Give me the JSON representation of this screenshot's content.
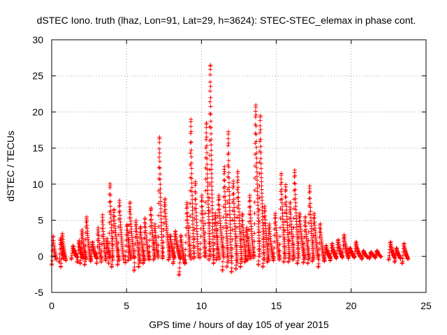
{
  "chart_data": {
    "type": "scatter",
    "title": "dSTEC Iono. truth (lhaz, Lon=91, Lat=29, h=3624): STEC-STEC_elemax in phase cont.",
    "xlabel": "GPS time / hours of day 105 of year 2015",
    "ylabel": "dSTEC  / TECUs",
    "xlim": [
      0,
      25
    ],
    "ylim": [
      -5,
      30
    ],
    "xticks": [
      0,
      5,
      10,
      15,
      20,
      25
    ],
    "yticks": [
      -5,
      0,
      5,
      10,
      15,
      20,
      25,
      30
    ],
    "grid": true,
    "marker": "+",
    "color": "#ff0000",
    "arcs": [
      {
        "t0": 0.0,
        "t1": 0.3,
        "a": 2.8,
        "b": -1.2
      },
      {
        "t0": 0.5,
        "t1": 0.8,
        "a": 2.6,
        "b": -0.8
      },
      {
        "t0": 0.6,
        "t1": 0.95,
        "a": 3.2,
        "b": -1.5
      },
      {
        "t0": 1.3,
        "t1": 1.7,
        "a": 1.5,
        "b": -0.4
      },
      {
        "t0": 1.7,
        "t1": 2.1,
        "a": 2.2,
        "b": -0.8
      },
      {
        "t0": 1.9,
        "t1": 2.3,
        "a": 3.7,
        "b": -1.0
      },
      {
        "t0": 2.2,
        "t1": 2.6,
        "a": 5.5,
        "b": -1.2
      },
      {
        "t0": 2.6,
        "t1": 3.0,
        "a": 2.0,
        "b": -0.7
      },
      {
        "t0": 3.0,
        "t1": 3.3,
        "a": 4.0,
        "b": -1.0
      },
      {
        "t0": 3.3,
        "t1": 3.6,
        "a": 5.8,
        "b": -0.8
      },
      {
        "t0": 3.6,
        "t1": 3.9,
        "a": 2.5,
        "b": -0.6
      },
      {
        "t0": 3.8,
        "t1": 4.1,
        "a": 10.2,
        "b": -1.0
      },
      {
        "t0": 4.0,
        "t1": 4.5,
        "a": 6.5,
        "b": -1.5
      },
      {
        "t0": 4.4,
        "t1": 4.8,
        "a": 7.8,
        "b": -1.2
      },
      {
        "t0": 4.9,
        "t1": 5.3,
        "a": 4.5,
        "b": -0.9
      },
      {
        "t0": 5.1,
        "t1": 5.5,
        "a": 7.5,
        "b": -0.6
      },
      {
        "t0": 5.5,
        "t1": 5.9,
        "a": 5.0,
        "b": -2.0
      },
      {
        "t0": 5.8,
        "t1": 6.2,
        "a": 4.2,
        "b": -1.5
      },
      {
        "t0": 6.1,
        "t1": 6.5,
        "a": 5.3,
        "b": -1.0
      },
      {
        "t0": 6.5,
        "t1": 6.9,
        "a": 6.8,
        "b": -0.5
      },
      {
        "t0": 6.8,
        "t1": 7.1,
        "a": 4.5,
        "b": -0.5
      },
      {
        "t0": 7.1,
        "t1": 7.4,
        "a": 16.5,
        "b": 0.0
      },
      {
        "t0": 7.4,
        "t1": 7.9,
        "a": 8.0,
        "b": -0.3
      },
      {
        "t0": 7.8,
        "t1": 8.2,
        "a": 3.0,
        "b": -0.5
      },
      {
        "t0": 8.1,
        "t1": 8.6,
        "a": 3.5,
        "b": -1.0
      },
      {
        "t0": 8.5,
        "t1": 8.9,
        "a": 3.0,
        "b": -2.6
      },
      {
        "t0": 8.9,
        "t1": 9.3,
        "a": 7.5,
        "b": -1.0
      },
      {
        "t0": 9.2,
        "t1": 9.5,
        "a": 19.0,
        "b": 0.0
      },
      {
        "t0": 9.5,
        "t1": 9.8,
        "a": 10.5,
        "b": -0.3
      },
      {
        "t0": 9.9,
        "t1": 10.3,
        "a": 8.5,
        "b": -0.2
      },
      {
        "t0": 10.2,
        "t1": 10.6,
        "a": 18.5,
        "b": 0.0
      },
      {
        "t0": 10.5,
        "t1": 10.8,
        "a": 26.5,
        "b": -0.5
      },
      {
        "t0": 10.8,
        "t1": 11.2,
        "a": 6.0,
        "b": -1.0
      },
      {
        "t0": 11.0,
        "t1": 11.5,
        "a": 8.5,
        "b": -0.5
      },
      {
        "t0": 11.4,
        "t1": 11.8,
        "a": 12.5,
        "b": -2.0
      },
      {
        "t0": 11.7,
        "t1": 12.0,
        "a": 17.3,
        "b": -1.5
      },
      {
        "t0": 12.0,
        "t1": 12.4,
        "a": 10.5,
        "b": -2.2
      },
      {
        "t0": 12.3,
        "t1": 12.7,
        "a": 11.8,
        "b": -1.8
      },
      {
        "t0": 12.6,
        "t1": 13.0,
        "a": 6.0,
        "b": -1.5
      },
      {
        "t0": 12.9,
        "t1": 13.3,
        "a": 4.0,
        "b": -0.8
      },
      {
        "t0": 13.1,
        "t1": 13.5,
        "a": 8.5,
        "b": -0.5
      },
      {
        "t0": 13.5,
        "t1": 13.9,
        "a": 21.0,
        "b": 0.0
      },
      {
        "t0": 13.8,
        "t1": 14.2,
        "a": 19.5,
        "b": -1.2
      },
      {
        "t0": 14.1,
        "t1": 14.5,
        "a": 7.0,
        "b": -1.5
      },
      {
        "t0": 14.4,
        "t1": 14.8,
        "a": 4.5,
        "b": -0.8
      },
      {
        "t0": 14.8,
        "t1": 15.2,
        "a": 6.0,
        "b": -0.6
      },
      {
        "t0": 15.2,
        "t1": 15.6,
        "a": 11.5,
        "b": -0.5
      },
      {
        "t0": 15.5,
        "t1": 15.9,
        "a": 10.0,
        "b": -0.8
      },
      {
        "t0": 15.8,
        "t1": 16.2,
        "a": 7.5,
        "b": -0.8
      },
      {
        "t0": 16.1,
        "t1": 16.5,
        "a": 12.0,
        "b": -0.5
      },
      {
        "t0": 16.4,
        "t1": 16.9,
        "a": 6.0,
        "b": -1.0
      },
      {
        "t0": 16.8,
        "t1": 17.2,
        "a": 5.5,
        "b": -0.9
      },
      {
        "t0": 17.1,
        "t1": 17.5,
        "a": 9.8,
        "b": -1.0
      },
      {
        "t0": 17.4,
        "t1": 17.8,
        "a": 6.0,
        "b": -0.7
      },
      {
        "t0": 17.8,
        "t1": 18.2,
        "a": 4.5,
        "b": -1.5
      },
      {
        "t0": 18.2,
        "t1": 18.6,
        "a": 1.5,
        "b": -0.7
      },
      {
        "t0": 18.6,
        "t1": 19.0,
        "a": 1.8,
        "b": -0.6
      },
      {
        "t0": 19.0,
        "t1": 19.4,
        "a": 2.3,
        "b": -0.3
      },
      {
        "t0": 19.4,
        "t1": 19.8,
        "a": 3.0,
        "b": -0.2
      },
      {
        "t0": 19.8,
        "t1": 20.2,
        "a": 1.2,
        "b": -0.3
      },
      {
        "t0": 20.2,
        "t1": 20.6,
        "a": 2.0,
        "b": -0.2
      },
      {
        "t0": 20.7,
        "t1": 21.1,
        "a": 0.8,
        "b": -0.4
      },
      {
        "t0": 21.2,
        "t1": 21.6,
        "a": 0.6,
        "b": -0.3
      },
      {
        "t0": 21.6,
        "t1": 22.0,
        "a": 0.8,
        "b": -0.2
      },
      {
        "t0": 22.5,
        "t1": 22.9,
        "a": 2.0,
        "b": -0.5
      },
      {
        "t0": 22.9,
        "t1": 23.3,
        "a": 1.2,
        "b": -0.8
      },
      {
        "t0": 23.4,
        "t1": 23.8,
        "a": 1.8,
        "b": -1.0
      }
    ]
  }
}
